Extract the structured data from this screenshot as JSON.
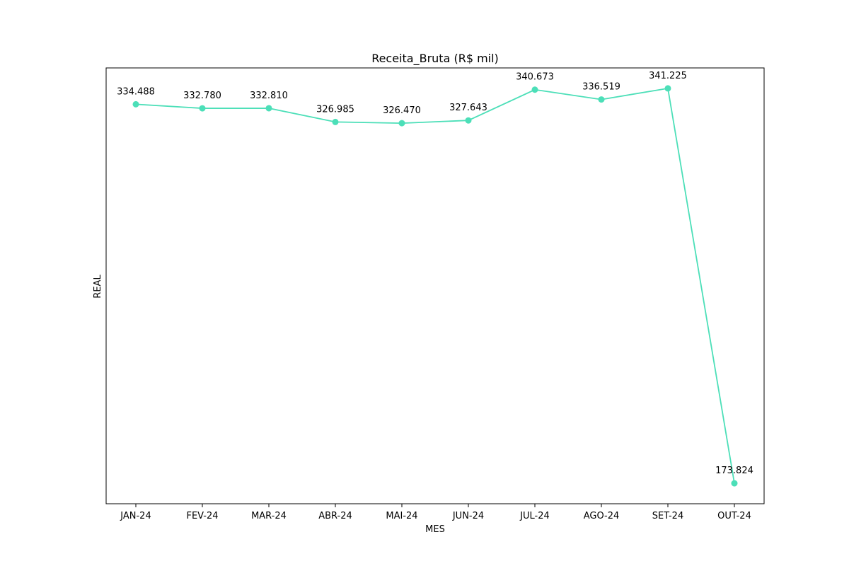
{
  "chart_data": {
    "type": "line",
    "title": "Receita_Bruta (R$ mil)",
    "xlabel": "MES",
    "ylabel": "REAL",
    "categories": [
      "JAN-24",
      "FEV-24",
      "MAR-24",
      "ABR-24",
      "MAI-24",
      "JUN-24",
      "JUL-24",
      "AGO-24",
      "SET-24",
      "OUT-24"
    ],
    "series": [
      {
        "values": [
          334488,
          332780,
          332810,
          326985,
          326470,
          327643,
          340673,
          336519,
          341225,
          173824
        ],
        "labels": [
          "334.488",
          "332.780",
          "332.810",
          "326.985",
          "326.470",
          "327.643",
          "340.673",
          "336.519",
          "341.225",
          "173.824"
        ]
      }
    ],
    "ylim": [
      165154,
      349895
    ],
    "y_ticks_visible": false,
    "grid": false,
    "line_color": "#4cdfb8",
    "marker": "circle"
  }
}
